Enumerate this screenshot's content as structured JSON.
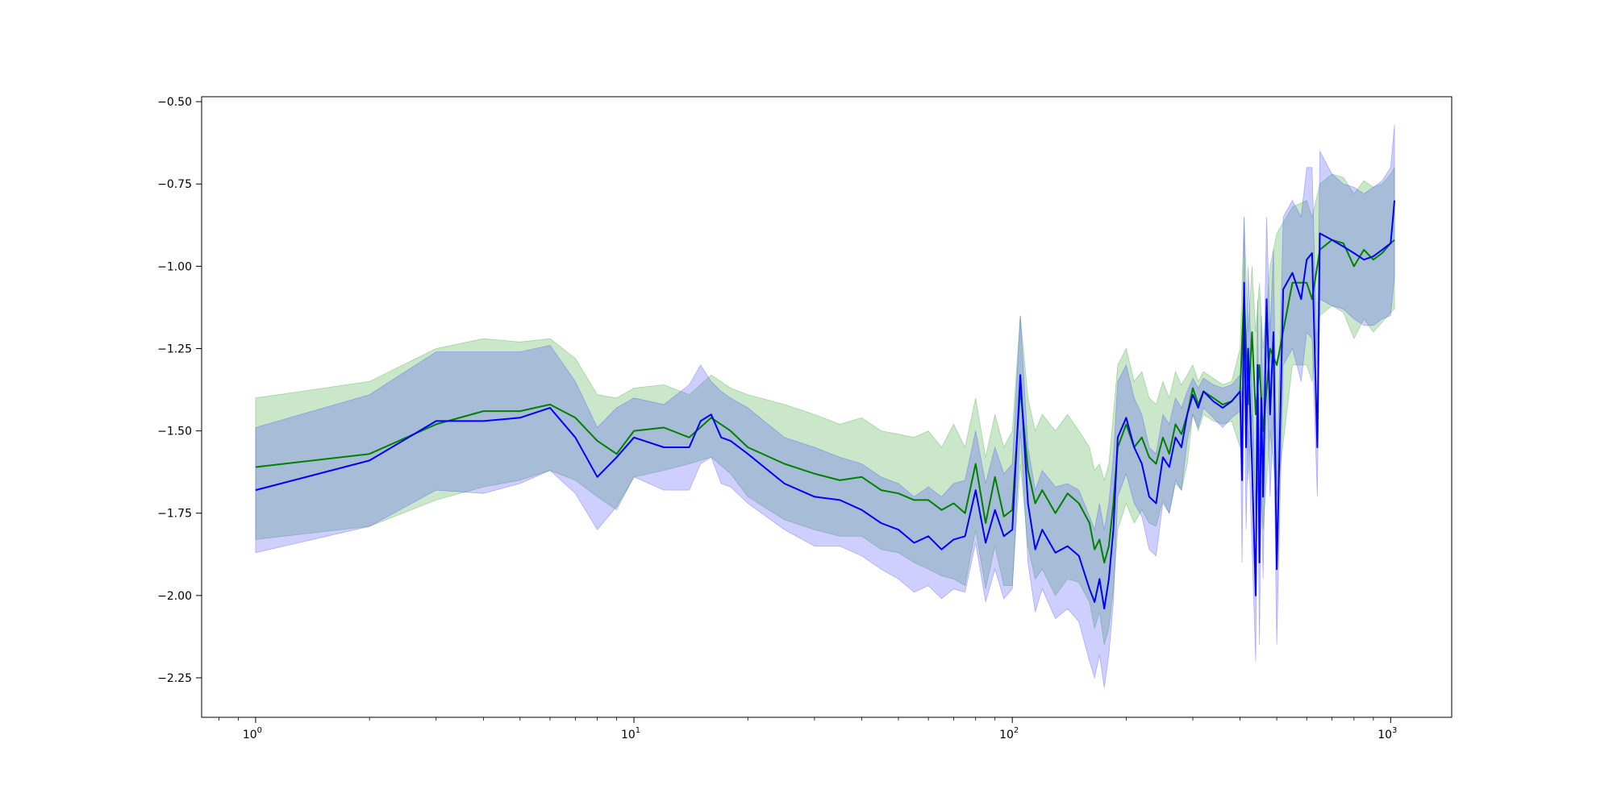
{
  "chart_data": {
    "type": "line",
    "title": "",
    "xlabel": "",
    "ylabel": "",
    "x_scale": "log",
    "xlim": [
      0.72,
      1450
    ],
    "ylim": [
      -2.37,
      -0.485
    ],
    "grid": false,
    "legend": "none",
    "x_ticks": [
      {
        "value": 1,
        "base": "10",
        "exp": "0"
      },
      {
        "value": 10,
        "base": "10",
        "exp": "1"
      },
      {
        "value": 100,
        "base": "10",
        "exp": "2"
      },
      {
        "value": 1000,
        "base": "10",
        "exp": "3"
      }
    ],
    "y_ticks": [
      {
        "value": -0.5,
        "label": "−0.50"
      },
      {
        "value": -0.75,
        "label": "−0.75"
      },
      {
        "value": -1.0,
        "label": "−1.00"
      },
      {
        "value": -1.25,
        "label": "−1.25"
      },
      {
        "value": -1.5,
        "label": "−1.50"
      },
      {
        "value": -1.75,
        "label": "−1.75"
      },
      {
        "value": -2.0,
        "label": "−2.00"
      },
      {
        "value": -2.25,
        "label": "−2.25"
      }
    ],
    "series": [
      {
        "color": "#008000",
        "band_color": "#2ca02c",
        "band_opacity": 0.25,
        "x": [
          1,
          2,
          3,
          4,
          5,
          6,
          7,
          8,
          9,
          10,
          12,
          14,
          16,
          18,
          20,
          25,
          30,
          35,
          40,
          45,
          50,
          55,
          60,
          65,
          70,
          75,
          80,
          85,
          90,
          95,
          100,
          105,
          110,
          115,
          120,
          130,
          140,
          150,
          160,
          165,
          170,
          175,
          180,
          185,
          190,
          200,
          210,
          220,
          230,
          240,
          250,
          260,
          270,
          280,
          290,
          300,
          310,
          320,
          340,
          360,
          380,
          400,
          410,
          420,
          430,
          440,
          450,
          460,
          480,
          500,
          550,
          600,
          620,
          650,
          700,
          750,
          800,
          850,
          900,
          950,
          1000,
          1024
        ],
        "y": [
          -1.61,
          -1.57,
          -1.48,
          -1.44,
          -1.44,
          -1.42,
          -1.46,
          -1.53,
          -1.57,
          -1.5,
          -1.49,
          -1.52,
          -1.46,
          -1.5,
          -1.55,
          -1.6,
          -1.63,
          -1.65,
          -1.64,
          -1.68,
          -1.69,
          -1.71,
          -1.71,
          -1.74,
          -1.72,
          -1.75,
          -1.6,
          -1.78,
          -1.64,
          -1.76,
          -1.74,
          -1.37,
          -1.62,
          -1.72,
          -1.68,
          -1.75,
          -1.69,
          -1.72,
          -1.78,
          -1.86,
          -1.83,
          -1.9,
          -1.85,
          -1.72,
          -1.55,
          -1.48,
          -1.55,
          -1.52,
          -1.58,
          -1.6,
          -1.52,
          -1.57,
          -1.48,
          -1.51,
          -1.45,
          -1.37,
          -1.42,
          -1.38,
          -1.4,
          -1.42,
          -1.41,
          -1.38,
          -1.08,
          -1.42,
          -1.2,
          -1.45,
          -1.3,
          -1.5,
          -1.25,
          -1.3,
          -1.05,
          -1.05,
          -1.1,
          -0.95,
          -0.92,
          -0.93,
          -1.0,
          -0.95,
          -0.98,
          -0.96,
          -0.93,
          -0.92
        ],
        "upper": [
          -1.4,
          -1.35,
          -1.25,
          -1.22,
          -1.23,
          -1.22,
          -1.28,
          -1.39,
          -1.4,
          -1.37,
          -1.36,
          -1.39,
          -1.33,
          -1.37,
          -1.39,
          -1.42,
          -1.45,
          -1.48,
          -1.46,
          -1.5,
          -1.51,
          -1.52,
          -1.5,
          -1.55,
          -1.48,
          -1.55,
          -1.4,
          -1.58,
          -1.45,
          -1.55,
          -1.5,
          -1.15,
          -1.4,
          -1.5,
          -1.45,
          -1.5,
          -1.45,
          -1.5,
          -1.55,
          -1.62,
          -1.6,
          -1.65,
          -1.6,
          -1.45,
          -1.3,
          -1.25,
          -1.35,
          -1.32,
          -1.4,
          -1.42,
          -1.35,
          -1.4,
          -1.32,
          -1.36,
          -1.33,
          -1.3,
          -1.35,
          -1.32,
          -1.34,
          -1.36,
          -1.35,
          -1.25,
          -0.85,
          -1.2,
          -1.0,
          -1.2,
          -1.05,
          -1.25,
          -1.0,
          -0.9,
          -0.82,
          -0.8,
          -0.85,
          -0.75,
          -0.72,
          -0.73,
          -0.78,
          -0.74,
          -0.76,
          -0.75,
          -0.72,
          -0.7
        ],
        "lower": [
          -1.83,
          -1.79,
          -1.71,
          -1.67,
          -1.65,
          -1.62,
          -1.65,
          -1.7,
          -1.74,
          -1.64,
          -1.62,
          -1.6,
          -1.58,
          -1.63,
          -1.7,
          -1.77,
          -1.8,
          -1.82,
          -1.82,
          -1.86,
          -1.87,
          -1.9,
          -1.92,
          -1.94,
          -1.95,
          -1.97,
          -1.8,
          -1.98,
          -1.85,
          -1.97,
          -1.97,
          -1.6,
          -1.85,
          -1.95,
          -1.92,
          -2.0,
          -1.95,
          -1.96,
          -2.02,
          -2.1,
          -2.05,
          -2.15,
          -2.1,
          -1.98,
          -1.8,
          -1.72,
          -1.78,
          -1.74,
          -1.78,
          -1.79,
          -1.71,
          -1.75,
          -1.66,
          -1.68,
          -1.6,
          -1.45,
          -1.5,
          -1.45,
          -1.47,
          -1.48,
          -1.47,
          -1.55,
          -1.3,
          -1.65,
          -1.45,
          -1.75,
          -1.6,
          -1.8,
          -1.5,
          -1.7,
          -1.3,
          -1.3,
          -1.35,
          -1.15,
          -1.12,
          -1.14,
          -1.22,
          -1.16,
          -1.2,
          -1.17,
          -1.14,
          -1.13
        ]
      },
      {
        "color": "#0000ff",
        "band_color": "#4040ff",
        "band_opacity": 0.25,
        "x": [
          1,
          2,
          3,
          4,
          5,
          6,
          7,
          8,
          9,
          10,
          12,
          14,
          15,
          16,
          17,
          18,
          20,
          25,
          30,
          35,
          40,
          45,
          50,
          55,
          60,
          65,
          70,
          75,
          80,
          85,
          90,
          95,
          100,
          105,
          110,
          115,
          120,
          130,
          140,
          150,
          160,
          165,
          170,
          175,
          180,
          185,
          190,
          200,
          210,
          220,
          230,
          240,
          250,
          260,
          270,
          280,
          290,
          300,
          310,
          320,
          340,
          360,
          380,
          400,
          405,
          410,
          415,
          420,
          430,
          440,
          445,
          450,
          455,
          460,
          470,
          480,
          490,
          500,
          520,
          550,
          580,
          600,
          620,
          640,
          650,
          700,
          750,
          800,
          850,
          900,
          950,
          1000,
          1024
        ],
        "y": [
          -1.68,
          -1.59,
          -1.47,
          -1.47,
          -1.46,
          -1.43,
          -1.52,
          -1.64,
          -1.58,
          -1.52,
          -1.55,
          -1.55,
          -1.47,
          -1.45,
          -1.52,
          -1.53,
          -1.57,
          -1.66,
          -1.7,
          -1.71,
          -1.74,
          -1.78,
          -1.8,
          -1.84,
          -1.82,
          -1.86,
          -1.83,
          -1.82,
          -1.68,
          -1.84,
          -1.74,
          -1.82,
          -1.8,
          -1.33,
          -1.72,
          -1.86,
          -1.8,
          -1.87,
          -1.85,
          -1.88,
          -1.98,
          -2.02,
          -1.95,
          -2.04,
          -1.95,
          -1.8,
          -1.52,
          -1.46,
          -1.55,
          -1.6,
          -1.7,
          -1.72,
          -1.58,
          -1.61,
          -1.52,
          -1.55,
          -1.45,
          -1.39,
          -1.43,
          -1.38,
          -1.41,
          -1.43,
          -1.41,
          -1.38,
          -1.65,
          -1.05,
          -1.55,
          -1.25,
          -1.6,
          -2.0,
          -1.3,
          -1.9,
          -1.4,
          -1.7,
          -1.1,
          -1.45,
          -1.2,
          -1.92,
          -1.07,
          -1.02,
          -1.1,
          -0.98,
          -0.96,
          -1.55,
          -0.9,
          -0.92,
          -0.94,
          -0.96,
          -0.98,
          -0.97,
          -0.95,
          -0.93,
          -0.8
        ],
        "upper": [
          -1.49,
          -1.39,
          -1.26,
          -1.26,
          -1.26,
          -1.24,
          -1.35,
          -1.49,
          -1.43,
          -1.4,
          -1.42,
          -1.36,
          -1.3,
          -1.35,
          -1.38,
          -1.4,
          -1.43,
          -1.52,
          -1.55,
          -1.58,
          -1.6,
          -1.64,
          -1.66,
          -1.7,
          -1.67,
          -1.7,
          -1.66,
          -1.65,
          -1.5,
          -1.66,
          -1.55,
          -1.63,
          -1.6,
          -1.15,
          -1.55,
          -1.68,
          -1.62,
          -1.67,
          -1.66,
          -1.68,
          -1.76,
          -1.8,
          -1.72,
          -1.8,
          -1.72,
          -1.58,
          -1.35,
          -1.3,
          -1.4,
          -1.45,
          -1.55,
          -1.57,
          -1.45,
          -1.48,
          -1.4,
          -1.43,
          -1.38,
          -1.34,
          -1.37,
          -1.34,
          -1.36,
          -1.37,
          -1.36,
          -1.33,
          -1.4,
          -0.85,
          -1.3,
          -1.0,
          -1.35,
          -1.75,
          -1.1,
          -1.65,
          -1.15,
          -1.45,
          -0.85,
          -1.2,
          -0.95,
          -1.65,
          -0.85,
          -0.8,
          -0.85,
          -0.7,
          -0.7,
          -1.3,
          -0.65,
          -0.72,
          -0.75,
          -0.76,
          -0.78,
          -0.76,
          -0.74,
          -0.7,
          -0.57
        ],
        "lower": [
          -1.87,
          -1.79,
          -1.68,
          -1.69,
          -1.66,
          -1.62,
          -1.69,
          -1.8,
          -1.73,
          -1.64,
          -1.68,
          -1.68,
          -1.6,
          -1.58,
          -1.66,
          -1.67,
          -1.72,
          -1.8,
          -1.85,
          -1.85,
          -1.88,
          -1.92,
          -1.95,
          -1.99,
          -1.97,
          -2.01,
          -1.98,
          -1.99,
          -1.84,
          -2.02,
          -1.92,
          -2.01,
          -1.98,
          -1.5,
          -1.9,
          -2.05,
          -1.98,
          -2.07,
          -2.04,
          -2.08,
          -2.2,
          -2.25,
          -2.18,
          -2.28,
          -2.18,
          -2.02,
          -1.7,
          -1.63,
          -1.72,
          -1.76,
          -1.86,
          -1.88,
          -1.72,
          -1.75,
          -1.65,
          -1.68,
          -1.53,
          -1.45,
          -1.49,
          -1.43,
          -1.46,
          -1.49,
          -1.46,
          -1.44,
          -1.9,
          -1.3,
          -1.8,
          -1.5,
          -1.85,
          -2.2,
          -1.55,
          -2.15,
          -1.65,
          -1.95,
          -1.35,
          -1.7,
          -1.45,
          -2.15,
          -1.3,
          -1.25,
          -1.35,
          -1.2,
          -1.22,
          -1.7,
          -1.1,
          -1.12,
          -1.13,
          -1.16,
          -1.18,
          -1.18,
          -1.16,
          -1.15,
          -1.03
        ]
      }
    ]
  }
}
